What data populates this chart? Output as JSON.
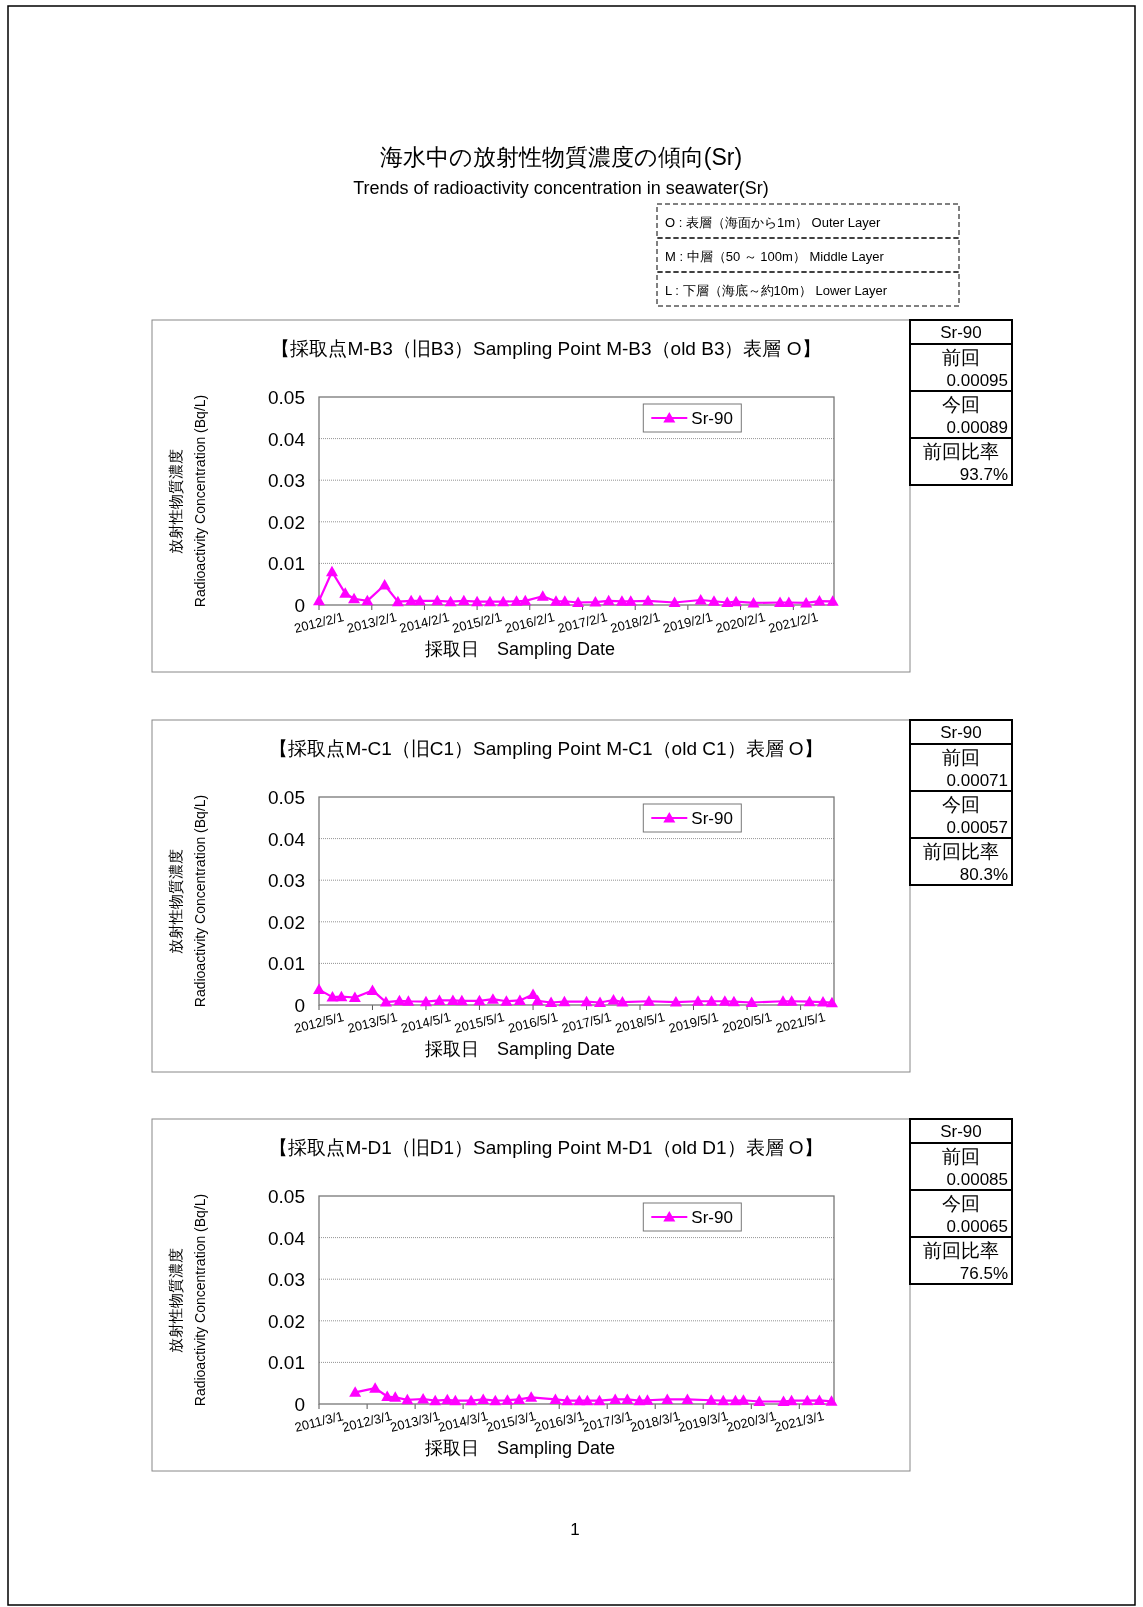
{
  "chart_data": [
    {
      "type": "line",
      "title": "【採取点M-B3（旧B3）Sampling Point M-B3（old B3）表層 O】",
      "xlabel": "採取日　Sampling Date",
      "ylabel": "放射性物質濃度\nRadioactivity Concentration (Bq/L)",
      "xlim": [
        "2012-02-01",
        "2021-11-10"
      ],
      "ylim": [
        0,
        0.05
      ],
      "yticks": [
        0,
        0.01,
        0.02,
        0.03,
        0.04,
        0.05
      ],
      "xticks": [
        {
          "value": "2012-02-01",
          "label": "2012/2/1"
        },
        {
          "value": "2013-02-01",
          "label": "2013/2/1"
        },
        {
          "value": "2014-02-01",
          "label": "2014/2/1"
        },
        {
          "value": "2015-02-01",
          "label": "2015/2/1"
        },
        {
          "value": "2016-02-01",
          "label": "2016/2/1"
        },
        {
          "value": "2017-02-01",
          "label": "2017/2/1"
        },
        {
          "value": "2018-02-01",
          "label": "2018/2/1"
        },
        {
          "value": "2019-02-01",
          "label": "2019/2/1"
        },
        {
          "value": "2020-02-01",
          "label": "2020/2/1"
        },
        {
          "value": "2021-02-01",
          "label": "2021/2/1"
        }
      ],
      "grid": "y",
      "legend": "top right",
      "marker": "triangle",
      "line_style": "solid",
      "series": [
        {
          "name": "Sr-90",
          "color": "#ff00ff",
          "x": [
            "2012-02",
            "2012-05",
            "2012-08",
            "2012-10",
            "2013-01",
            "2013-05",
            "2013-08",
            "2013-11",
            "2014-01",
            "2014-05",
            "2014-08",
            "2014-11",
            "2015-02",
            "2015-05",
            "2015-08",
            "2015-11",
            "2016-01",
            "2016-05",
            "2016-08",
            "2016-10",
            "2017-01",
            "2017-05",
            "2017-08",
            "2017-11",
            "2018-01",
            "2018-05",
            "2018-11",
            "2019-05",
            "2019-08",
            "2019-11",
            "2020-01",
            "2020-05",
            "2020-11",
            "2021-01",
            "2021-05",
            "2021-08",
            "2021-11"
          ],
          "values": [
            0.001,
            0.008,
            0.0028,
            0.0015,
            0.001,
            0.0048,
            0.0008,
            0.001,
            0.001,
            0.001,
            0.0008,
            0.001,
            0.0008,
            0.0008,
            0.0008,
            0.0009,
            0.001,
            0.0021,
            0.0009,
            0.0009,
            0.0006,
            0.0007,
            0.001,
            0.0009,
            0.0009,
            0.001,
            0.0006,
            0.0012,
            0.0009,
            0.0006,
            0.0008,
            0.0005,
            0.0006,
            0.0006,
            0.0005,
            0.00095,
            0.00089
          ]
        }
      ],
      "annotations": [
        "海水中の放射性物質濃度の傾向(Sr)",
        "Trends of radioactivity concentration in seawater(Sr)",
        "O : 表層（海面から1m） Outer Layer",
        "M : 中層（50 ～ 100m） Middle Layer",
        "L : 下層（海底～約10m） Lower Layer",
        "Sr-90",
        "前回",
        "0.00095",
        "今回",
        "0.00089",
        "前回比率",
        "93.7%"
      ]
    },
    {
      "type": "line",
      "title": "【採取点M-C1（旧C1）Sampling Point M-C1（old C1）表層 O】",
      "xlabel": "採取日　Sampling Date",
      "ylabel": "放射性物質濃度\nRadioactivity Concentration (Bq/L)",
      "xlim": [
        "2012-05-01",
        "2021-12-15"
      ],
      "ylim": [
        0,
        0.05
      ],
      "yticks": [
        0,
        0.01,
        0.02,
        0.03,
        0.04,
        0.05
      ],
      "xticks": [
        {
          "value": "2012-05-01",
          "label": "2012/5/1"
        },
        {
          "value": "2013-05-01",
          "label": "2013/5/1"
        },
        {
          "value": "2014-05-01",
          "label": "2014/5/1"
        },
        {
          "value": "2015-05-01",
          "label": "2015/5/1"
        },
        {
          "value": "2016-05-01",
          "label": "2016/5/1"
        },
        {
          "value": "2017-05-01",
          "label": "2017/5/1"
        },
        {
          "value": "2018-05-01",
          "label": "2018/5/1"
        },
        {
          "value": "2019-05-01",
          "label": "2019/5/1"
        },
        {
          "value": "2020-05-01",
          "label": "2020/5/1"
        },
        {
          "value": "2021-05-01",
          "label": "2021/5/1"
        }
      ],
      "grid": "y",
      "legend": "top right",
      "marker": "triangle",
      "line_style": "solid",
      "series": [
        {
          "name": "Sr-90",
          "color": "#ff00ff",
          "x": [
            "2012-05",
            "2012-08",
            "2012-10",
            "2013-01",
            "2013-05",
            "2013-08",
            "2013-11",
            "2014-01",
            "2014-05",
            "2014-08",
            "2014-11",
            "2015-01",
            "2015-05",
            "2015-08",
            "2015-11",
            "2016-02",
            "2016-05",
            "2016-06",
            "2016-09",
            "2016-12",
            "2017-05",
            "2017-08",
            "2017-11",
            "2018-01",
            "2018-07",
            "2019-01",
            "2019-06",
            "2019-09",
            "2019-12",
            "2020-02",
            "2020-06",
            "2021-01",
            "2021-03",
            "2021-07",
            "2021-10",
            "2021-12"
          ],
          "values": [
            0.0037,
            0.0019,
            0.002,
            0.0018,
            0.0035,
            0.0007,
            0.001,
            0.0009,
            0.0008,
            0.0011,
            0.0011,
            0.001,
            0.001,
            0.0014,
            0.0009,
            0.0011,
            0.0025,
            0.001,
            0.0006,
            0.0008,
            0.0008,
            0.0006,
            0.0012,
            0.0007,
            0.0009,
            0.0007,
            0.0009,
            0.0009,
            0.0009,
            0.0008,
            0.0006,
            0.0009,
            0.0009,
            0.0008,
            0.00071,
            0.00057
          ]
        }
      ],
      "annotations": [
        "Sr-90",
        "前回",
        "0.00071",
        "今回",
        "0.00057",
        "前回比率",
        "80.3%"
      ]
    },
    {
      "type": "line",
      "title": "【採取点M-D1（旧D1）Sampling Point M-D1（old D1）表層 O】",
      "xlabel": "採取日　Sampling Date",
      "ylabel": "放射性物質濃度\nRadioactivity Concentration (Bq/L)",
      "xlim": [
        "2011-03-01",
        "2021-11-20"
      ],
      "ylim": [
        0,
        0.05
      ],
      "yticks": [
        0,
        0.01,
        0.02,
        0.03,
        0.04,
        0.05
      ],
      "xticks": [
        {
          "value": "2011-03-01",
          "label": "2011/3/1"
        },
        {
          "value": "2012-03-01",
          "label": "2012/3/1"
        },
        {
          "value": "2013-03-01",
          "label": "2013/3/1"
        },
        {
          "value": "2014-03-01",
          "label": "2014/3/1"
        },
        {
          "value": "2015-03-01",
          "label": "2015/3/1"
        },
        {
          "value": "2016-03-01",
          "label": "2016/3/1"
        },
        {
          "value": "2017-03-01",
          "label": "2017/3/1"
        },
        {
          "value": "2018-03-01",
          "label": "2018/3/1"
        },
        {
          "value": "2019-03-01",
          "label": "2019/3/1"
        },
        {
          "value": "2020-03-01",
          "label": "2020/3/1"
        },
        {
          "value": "2021-03-01",
          "label": "2021/3/1"
        }
      ],
      "grid": "y",
      "legend": "top right",
      "marker": "triangle",
      "line_style": "solid",
      "series": [
        {
          "name": "Sr-90",
          "color": "#ff00ff",
          "x": [
            "2011-12",
            "2012-05",
            "2012-08",
            "2012-10",
            "2013-01",
            "2013-05",
            "2013-08",
            "2013-11",
            "2014-01",
            "2014-05",
            "2014-08",
            "2014-11",
            "2015-02",
            "2015-05",
            "2015-08",
            "2016-02",
            "2016-05",
            "2016-08",
            "2016-10",
            "2017-01",
            "2017-05",
            "2017-08",
            "2017-11",
            "2018-01",
            "2018-06",
            "2018-11",
            "2019-05",
            "2019-08",
            "2019-11",
            "2020-01",
            "2020-05",
            "2020-11",
            "2021-01",
            "2021-05",
            "2021-08",
            "2021-11"
          ],
          "values": [
            0.0028,
            0.0038,
            0.0018,
            0.0016,
            0.001,
            0.0012,
            0.0008,
            0.001,
            0.0008,
            0.0008,
            0.0011,
            0.0008,
            0.0009,
            0.0011,
            0.0016,
            0.0011,
            0.0008,
            0.0008,
            0.0008,
            0.0008,
            0.0011,
            0.0011,
            0.0008,
            0.0009,
            0.0011,
            0.0011,
            0.0009,
            0.0008,
            0.0008,
            0.0009,
            0.0006,
            0.0006,
            0.0008,
            0.0008,
            0.00085,
            0.00065
          ]
        }
      ],
      "annotations": [
        "Sr-90",
        "前回",
        "0.00085",
        "今回",
        "0.00065",
        "前回比率",
        "76.5%",
        "1"
      ]
    }
  ]
}
